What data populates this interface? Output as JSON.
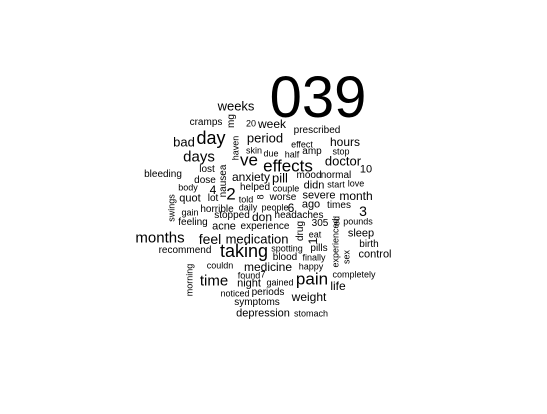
{
  "words": [
    {
      "text": "039",
      "rotated": false
    },
    {
      "text": "weeks",
      "rotated": false
    },
    {
      "text": "mg",
      "rotated": true
    },
    {
      "text": "cramps",
      "rotated": false
    },
    {
      "text": "20",
      "rotated": false
    },
    {
      "text": "week",
      "rotated": false
    },
    {
      "text": "prescribed",
      "rotated": false
    },
    {
      "text": "day",
      "rotated": false
    },
    {
      "text": "period",
      "rotated": false
    },
    {
      "text": "bad",
      "rotated": false
    },
    {
      "text": "haven",
      "rotated": true
    },
    {
      "text": "skin",
      "rotated": false
    },
    {
      "text": "due",
      "rotated": false
    },
    {
      "text": "effect",
      "rotated": false
    },
    {
      "text": "half",
      "rotated": false
    },
    {
      "text": "amp",
      "rotated": false
    },
    {
      "text": "hours",
      "rotated": false
    },
    {
      "text": "stop",
      "rotated": false
    },
    {
      "text": "days",
      "rotated": false
    },
    {
      "text": "ve",
      "rotated": false
    },
    {
      "text": "effects",
      "rotated": false
    },
    {
      "text": "doctor",
      "rotated": false
    },
    {
      "text": "lost",
      "rotated": false
    },
    {
      "text": "bleeding",
      "rotated": false
    },
    {
      "text": "nausea",
      "rotated": true
    },
    {
      "text": "anxiety",
      "rotated": false
    },
    {
      "text": "pill",
      "rotated": false
    },
    {
      "text": "mood",
      "rotated": false
    },
    {
      "text": "normal",
      "rotated": false
    },
    {
      "text": "10",
      "rotated": false
    },
    {
      "text": "dose",
      "rotated": false
    },
    {
      "text": "body",
      "rotated": false
    },
    {
      "text": "2",
      "rotated": false
    },
    {
      "text": "helped",
      "rotated": false
    },
    {
      "text": "couple",
      "rotated": false
    },
    {
      "text": "didn",
      "rotated": false
    },
    {
      "text": "start",
      "rotated": false
    },
    {
      "text": "love",
      "rotated": false
    },
    {
      "text": "4",
      "rotated": false
    },
    {
      "text": "month",
      "rotated": false
    },
    {
      "text": "quot",
      "rotated": false
    },
    {
      "text": "lot",
      "rotated": false
    },
    {
      "text": "told",
      "rotated": false
    },
    {
      "text": "8",
      "rotated": true
    },
    {
      "text": "worse",
      "rotated": false
    },
    {
      "text": "severe",
      "rotated": false
    },
    {
      "text": "swings",
      "rotated": true
    },
    {
      "text": "horrible",
      "rotated": false
    },
    {
      "text": "daily",
      "rotated": false
    },
    {
      "text": "people",
      "rotated": false
    },
    {
      "text": "6",
      "rotated": false
    },
    {
      "text": "ago",
      "rotated": false
    },
    {
      "text": "times",
      "rotated": false
    },
    {
      "text": "3",
      "rotated": false
    },
    {
      "text": "gain",
      "rotated": false
    },
    {
      "text": "stopped",
      "rotated": false
    },
    {
      "text": "don",
      "rotated": false
    },
    {
      "text": "headaches",
      "rotated": false
    },
    {
      "text": "feeling",
      "rotated": false
    },
    {
      "text": "acne",
      "rotated": false
    },
    {
      "text": "experience",
      "rotated": false
    },
    {
      "text": "drug",
      "rotated": true
    },
    {
      "text": "305",
      "rotated": false
    },
    {
      "text": "pounds",
      "rotated": false
    },
    {
      "text": "ed",
      "rotated": true
    },
    {
      "text": "months",
      "rotated": false
    },
    {
      "text": "feel",
      "rotated": false
    },
    {
      "text": "medication",
      "rotated": false
    },
    {
      "text": "1",
      "rotated": true
    },
    {
      "text": "eat",
      "rotated": false
    },
    {
      "text": "sleep",
      "rotated": false
    },
    {
      "text": "birth",
      "rotated": false
    },
    {
      "text": "recommend",
      "rotated": false
    },
    {
      "text": "taking",
      "rotated": false
    },
    {
      "text": "spotting",
      "rotated": false
    },
    {
      "text": "pills",
      "rotated": false
    },
    {
      "text": "experienced",
      "rotated": true
    },
    {
      "text": "sex",
      "rotated": true
    },
    {
      "text": "control",
      "rotated": false
    },
    {
      "text": "blood",
      "rotated": false
    },
    {
      "text": "finally",
      "rotated": false
    },
    {
      "text": "couldn",
      "rotated": false
    },
    {
      "text": "medicine",
      "rotated": false
    },
    {
      "text": "happy",
      "rotated": false
    },
    {
      "text": "morning",
      "rotated": true
    },
    {
      "text": "found",
      "rotated": false
    },
    {
      "text": "7",
      "rotated": false
    },
    {
      "text": "pain",
      "rotated": false
    },
    {
      "text": "completely",
      "rotated": false
    },
    {
      "text": "time",
      "rotated": false
    },
    {
      "text": "night",
      "rotated": false
    },
    {
      "text": "gained",
      "rotated": false
    },
    {
      "text": "life",
      "rotated": false
    },
    {
      "text": "noticed",
      "rotated": false
    },
    {
      "text": "periods",
      "rotated": false
    },
    {
      "text": "weight",
      "rotated": false
    },
    {
      "text": "symptoms",
      "rotated": false
    },
    {
      "text": "depression",
      "rotated": false
    },
    {
      "text": "stomach",
      "rotated": false
    }
  ]
}
